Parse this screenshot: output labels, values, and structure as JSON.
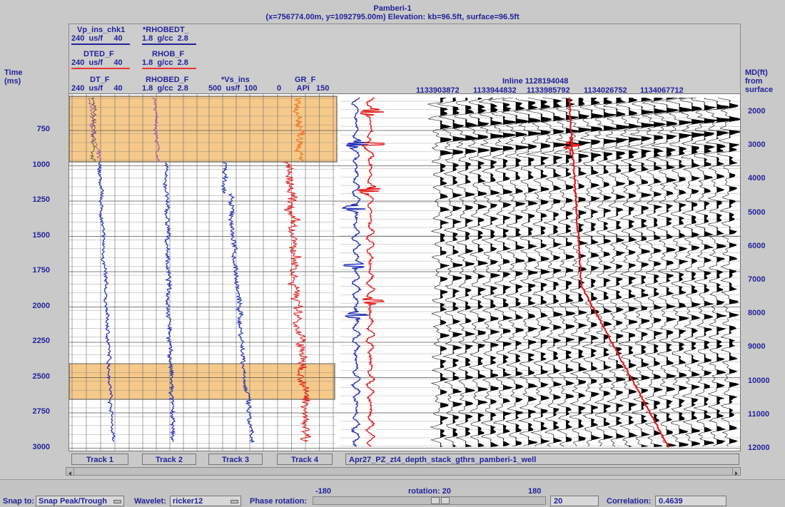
{
  "title": {
    "well_name": "Pamberi-1",
    "location": "(x=756774.00m, y=1092795.00m) Elevation: kb=96.5ft, surface=96.5ft"
  },
  "header": {
    "vp_curve": "Vp_ins_chk1",
    "vp_scale_left": "240",
    "vp_scale_unit": "us/f",
    "vp_scale_right": "40",
    "rhobedt_curve": "*RHOBEDT_",
    "rhobedt_scale_left": "1.8",
    "rhobedt_scale_unit": "g/cc",
    "rhobedt_scale_right": "2.8",
    "dted_curve": "DTED_F",
    "dted_scale_left": "240",
    "dted_scale_unit": "us/f",
    "dted_scale_right": "40",
    "rhob_curve": "RHOB_F",
    "rhob_scale_left": "1.8",
    "rhob_scale_unit": "g/cc",
    "rhob_scale_right": "2.8",
    "dt_curve": "DT_F",
    "dt_scale_left": "240",
    "dt_scale_unit": "us/f",
    "dt_scale_right": "40",
    "rhobed_curve": "RHOBED_F",
    "rhobed_scale_left": "1.8",
    "rhobed_scale_unit": "g/cc",
    "rhobed_scale_right": "2.8",
    "vs_curve": "*Vs_ins",
    "vs_scale_left": "500",
    "vs_scale_unit": "us/f",
    "vs_scale_right": "100",
    "gr_curve": "GR_F",
    "gr_scale_left": "0",
    "gr_scale_unit": "API",
    "gr_scale_right": "150",
    "inline_label": "Inline 1128194048",
    "trace_ids": [
      "1133903872",
      "1133944832",
      "1133985792",
      "1134026752",
      "1134067712"
    ]
  },
  "left_axis": {
    "title_line1": "Time",
    "title_line2": "(ms)",
    "ticks": [
      "750",
      "1000",
      "1250",
      "1500",
      "1750",
      "2000",
      "2250",
      "2500",
      "2750",
      "3000"
    ]
  },
  "right_axis": {
    "title_line1": "MD(ft)",
    "title_line2": "from",
    "title_line3": "surface",
    "ticks": [
      "2000",
      "3000",
      "4000",
      "5000",
      "6000",
      "7000",
      "8000",
      "9000",
      "10000",
      "11000",
      "12000"
    ]
  },
  "tracks": {
    "track1": "Track 1",
    "track2": "Track 2",
    "track3": "Track 3",
    "track4": "Track 4",
    "seismic": "Apr27_PZ_zt4_depth_stack_gthrs_pamberi-1_well"
  },
  "bottom": {
    "snap_label": "Snap to:",
    "snap_value": "Snap Peak/Trough",
    "wavelet_label": "Wavelet:",
    "wavelet_value": "ricker12",
    "phase_label": "Phase rotation:",
    "slider_min": "-180",
    "slider_caption": "rotation: 20",
    "slider_max": "180",
    "rotation_value": "20",
    "correlation_label": "Correlation:",
    "correlation_value": "0.4639"
  },
  "colors": {
    "axis_text": "#23239a",
    "log_blue": "#2633b8",
    "log_red": "#e31e1e",
    "highlight": "#f5c98a",
    "wiggle": "#000000"
  }
}
